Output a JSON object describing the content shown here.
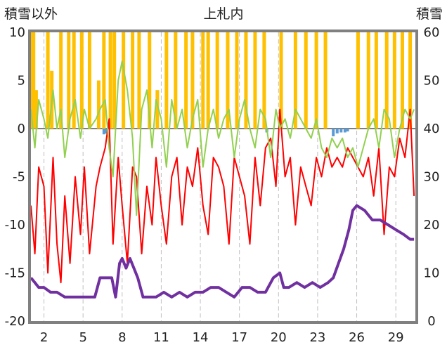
{
  "chart_data": {
    "type": "line",
    "title": "上札内",
    "left_axis_label": "積雪以外",
    "right_axis_label": "積雪",
    "x_ticks": [
      "2",
      "5",
      "8",
      "11",
      "14",
      "17",
      "20",
      "23",
      "26",
      "29"
    ],
    "x_tick_days": [
      2,
      5,
      8,
      11,
      14,
      17,
      20,
      23,
      26,
      29
    ],
    "xlim": [
      1,
      30.5
    ],
    "y_left_ticks": [
      "10",
      "5",
      "0",
      "-5",
      "-10",
      "-15",
      "-20"
    ],
    "ylim_left": [
      -20,
      10
    ],
    "y_right_ticks": [
      "60",
      "50",
      "40",
      "30",
      "20",
      "10",
      "0"
    ],
    "ylim_right": [
      0,
      60
    ],
    "grid": "vertical dashed lines at each tick",
    "colors": {
      "precipitation_bars": "#FFC000",
      "sunshine_bars": "#5B9BD5",
      "temperature": "#FF0000",
      "wind": "#92D050",
      "snow_depth": "#7030A0",
      "zero_line": "#7F7F7F",
      "plot_border": "#808080"
    },
    "series": [
      {
        "key": "temperature",
        "axis": "left",
        "x": [
          1.0,
          1.3,
          1.6,
          2.0,
          2.3,
          2.7,
          3.0,
          3.3,
          3.6,
          4.0,
          4.4,
          4.8,
          5.1,
          5.5,
          6.0,
          6.3,
          6.7,
          7.0,
          7.3,
          7.7,
          8.0,
          8.4,
          8.8,
          9.1,
          9.5,
          9.9,
          10.3,
          10.6,
          11.0,
          11.4,
          11.8,
          12.2,
          12.6,
          13.0,
          13.4,
          13.8,
          14.2,
          14.6,
          15.0,
          15.4,
          15.8,
          16.2,
          16.6,
          17.0,
          17.4,
          17.8,
          18.2,
          18.6,
          19.0,
          19.4,
          19.8,
          20.1,
          20.5,
          20.9,
          21.3,
          21.7,
          22.1,
          22.5,
          22.9,
          23.3,
          23.7,
          24.1,
          24.5,
          24.9,
          25.3,
          25.7,
          26.1,
          26.5,
          26.9,
          27.3,
          27.7,
          28.1,
          28.5,
          28.9,
          29.3,
          29.7,
          30.1,
          30.4
        ],
        "y": [
          -8,
          -13,
          -4,
          -6,
          -15,
          -3,
          -12,
          -16,
          -7,
          -14,
          -5,
          -11,
          -4,
          -13,
          -6,
          -4,
          -2,
          1,
          -12,
          -3,
          -8,
          -14,
          -4,
          -5,
          -13,
          -6,
          -10,
          -3,
          -8,
          -12,
          -5,
          -3,
          -10,
          -4,
          -6,
          -2,
          -8,
          -11,
          -3,
          -4,
          -6,
          -12,
          -3,
          -5,
          -7,
          -12,
          -3,
          -8,
          -2,
          -1,
          -6,
          2,
          -5,
          -3,
          -10,
          -4,
          -6,
          -8,
          -3,
          -5,
          -2,
          -4,
          -3,
          -4,
          -2,
          -3,
          -4,
          -5,
          -3,
          -7,
          -2,
          -11,
          -4,
          -5,
          -1,
          -3,
          2,
          -7
        ]
      },
      {
        "key": "wind",
        "axis": "left",
        "x": [
          1.0,
          1.3,
          1.6,
          2.0,
          2.3,
          2.7,
          3.0,
          3.3,
          3.6,
          4.0,
          4.4,
          4.8,
          5.1,
          5.5,
          6.0,
          6.3,
          6.7,
          7.0,
          7.3,
          7.7,
          8.0,
          8.4,
          8.8,
          9.1,
          9.5,
          9.9,
          10.3,
          10.6,
          11.0,
          11.4,
          11.8,
          12.2,
          12.6,
          13.0,
          13.4,
          13.8,
          14.2,
          14.6,
          15.0,
          15.4,
          15.8,
          16.2,
          16.6,
          17.0,
          17.4,
          17.8,
          18.2,
          18.6,
          19.0,
          19.4,
          19.8,
          20.1,
          20.5,
          20.9,
          21.3,
          21.7,
          22.1,
          22.5,
          22.9,
          23.3,
          23.7,
          24.1,
          24.5,
          24.9,
          25.3,
          25.7,
          26.1,
          26.5,
          26.9,
          27.3,
          27.7,
          28.1,
          28.5,
          28.9,
          29.3,
          29.7,
          30.1,
          30.4
        ],
        "y": [
          2,
          -2,
          3,
          1,
          -1,
          4,
          0,
          2,
          -3,
          1,
          3,
          -1,
          2,
          0,
          1,
          2,
          3,
          -2,
          -5,
          5,
          7,
          4,
          -1,
          -9,
          2,
          4,
          -2,
          3,
          1,
          -4,
          3,
          0,
          2,
          -2,
          1,
          3,
          -4,
          0,
          2,
          -1,
          1,
          2,
          -3,
          1,
          3,
          0,
          -2,
          2,
          1,
          -3,
          2,
          0,
          1,
          -1,
          2,
          1,
          0,
          -1,
          1,
          -2,
          -3,
          -1,
          -2,
          -1,
          -3,
          -2,
          -4,
          -2,
          0,
          1,
          -2,
          2,
          1,
          -3,
          0,
          2,
          1,
          2
        ]
      },
      {
        "key": "snow_depth",
        "axis": "right",
        "x": [
          1.0,
          1.3,
          1.6,
          2.0,
          2.5,
          3.0,
          3.6,
          4.0,
          4.8,
          5.4,
          5.9,
          6.3,
          6.8,
          7.2,
          7.5,
          7.8,
          8.0,
          8.3,
          8.6,
          8.9,
          9.2,
          9.6,
          10.0,
          10.6,
          11.2,
          11.8,
          12.4,
          13.0,
          13.6,
          14.2,
          14.8,
          15.4,
          16.0,
          16.6,
          17.2,
          17.8,
          18.4,
          19.0,
          19.4,
          19.6,
          20.1,
          20.4,
          20.8,
          21.4,
          22.0,
          22.6,
          23.2,
          23.8,
          24.2,
          24.6,
          25.0,
          25.4,
          25.7,
          26.0,
          26.6,
          27.2,
          27.8,
          28.4,
          29.0,
          29.6,
          30.1,
          30.4
        ],
        "y": [
          9,
          8,
          7,
          7,
          6,
          6,
          5,
          5,
          5,
          5,
          5,
          9,
          9,
          9,
          5,
          12,
          13,
          11,
          13,
          11,
          9,
          5,
          5,
          5,
          6,
          5,
          6,
          5,
          6,
          6,
          7,
          7,
          6,
          5,
          7,
          7,
          6,
          6,
          8,
          9,
          10,
          7,
          7,
          8,
          7,
          8,
          7,
          8,
          9,
          12,
          15,
          19,
          23,
          24,
          23,
          21,
          21,
          20,
          19,
          18,
          17,
          17
        ]
      }
    ],
    "precipitation_days": [
      1.1,
      1.2,
      1.4,
      2.3,
      2.6,
      3.3,
      3.9,
      4.3,
      4.9,
      5.5,
      6.2,
      6.6,
      7.1,
      7.4,
      8.1,
      8.8,
      9.3,
      10.1,
      10.7,
      11.4,
      12.1,
      12.9,
      13.4,
      14.2,
      14.6,
      15.3,
      16.1,
      16.8,
      17.5,
      18.2,
      18.9,
      20.2,
      21.3,
      22.1,
      22.9,
      23.6,
      26.1,
      26.9,
      27.5,
      28.3,
      28.9,
      29.5,
      30.1
    ],
    "precipitation_heights": [
      10,
      10,
      4,
      10,
      6,
      10,
      10,
      10,
      10,
      10,
      5,
      10,
      10,
      10,
      10,
      10,
      10,
      10,
      4,
      10,
      10,
      10,
      10,
      10,
      10,
      10,
      10,
      10,
      10,
      10,
      10,
      10,
      10,
      10,
      10,
      10,
      10,
      10,
      10,
      10,
      10,
      10,
      10
    ],
    "sunshine_days": [
      6.6,
      6.8,
      19.1,
      24.2,
      24.5,
      24.8,
      25.1,
      25.3
    ],
    "sunshine_values": [
      -0.6,
      -0.5,
      -0.4,
      -0.8,
      -0.5,
      -0.4,
      -0.4,
      -0.3
    ]
  }
}
